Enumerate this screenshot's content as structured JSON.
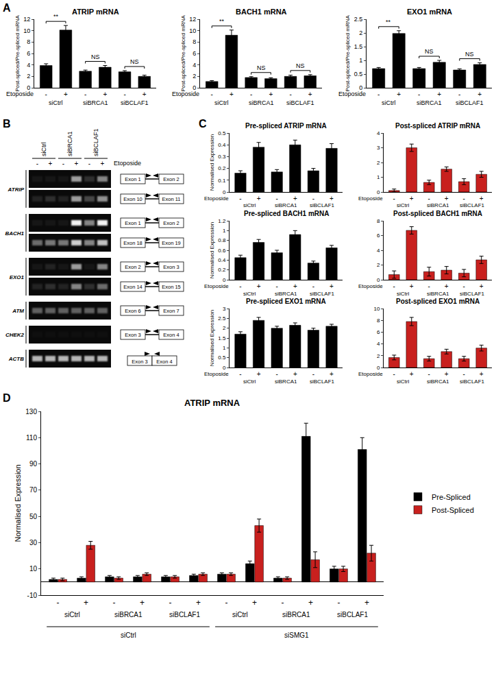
{
  "panel_labels": [
    "A",
    "B",
    "C",
    "D"
  ],
  "chart_data": [
    {
      "type": "bar",
      "title": "ATRIP mRNA",
      "y_label": "Post-spliced/Pre-spliced mRNA",
      "x_label": "Etoposide",
      "categories": [
        "-",
        "+",
        "-",
        "+",
        "-",
        "+"
      ],
      "groups": [
        "siCtrl",
        "siBRCA1",
        "siBCLAF1"
      ],
      "values": [
        3.9,
        10.1,
        2.9,
        3.6,
        2.8,
        2.0
      ],
      "errors": [
        0.3,
        0.8,
        0.2,
        0.3,
        0.2,
        0.2
      ],
      "color": "#000000",
      "ylim": [
        0,
        12
      ],
      "yticks": [
        0,
        2,
        4,
        6,
        8,
        10,
        12
      ],
      "significance": [
        "**",
        "NS",
        "NS"
      ]
    },
    {
      "type": "bar",
      "title": "BACH1 mRNA",
      "y_label": "Post-spliced/Pre-spliced mRNA",
      "x_label": "Etoposide",
      "categories": [
        "-",
        "+",
        "-",
        "+",
        "-",
        "+"
      ],
      "groups": [
        "siCtrl",
        "siBRCA1",
        "siBCLAF1"
      ],
      "values": [
        1.1,
        9.2,
        1.8,
        1.6,
        2.0,
        2.1
      ],
      "errors": [
        0.15,
        0.9,
        0.15,
        0.15,
        0.2,
        0.2
      ],
      "color": "#000000",
      "ylim": [
        0,
        12
      ],
      "yticks": [
        0,
        2,
        4,
        6,
        8,
        10,
        12
      ],
      "significance": [
        "**",
        "NS",
        "NS"
      ]
    },
    {
      "type": "bar",
      "title": "EXO1 mRNA",
      "y_label": "Post-spliced/Pre-spliced mRNA",
      "x_label": "Etoposide",
      "categories": [
        "-",
        "+",
        "-",
        "+",
        "-",
        "+"
      ],
      "groups": [
        "siCtrl",
        "siBRCA1",
        "siBCLAF1"
      ],
      "values": [
        0.7,
        1.98,
        0.7,
        0.93,
        0.65,
        0.85
      ],
      "errors": [
        0.04,
        0.1,
        0.04,
        0.07,
        0.04,
        0.06
      ],
      "color": "#000000",
      "ylim": [
        0,
        2.5
      ],
      "yticks": [
        0,
        0.5,
        1,
        1.5,
        2,
        2.5
      ],
      "significance": [
        "**",
        "NS",
        "NS"
      ]
    },
    {
      "type": "bar",
      "title": "Pre-spliced ATRIP mRNA",
      "y_label": "Normalised Expression",
      "x_label": "Etoposide",
      "categories": [
        "-",
        "+",
        "-",
        "+",
        "-",
        "+"
      ],
      "groups": [
        "siCtrl",
        "siBRCA1",
        "siBCLAF1"
      ],
      "values": [
        0.16,
        0.38,
        0.17,
        0.4,
        0.18,
        0.37
      ],
      "errors": [
        0.02,
        0.04,
        0.02,
        0.04,
        0.02,
        0.04
      ],
      "color": "#000000",
      "ylim": [
        0,
        0.5
      ],
      "yticks": [
        0,
        0.1,
        0.2,
        0.3,
        0.4,
        0.5
      ]
    },
    {
      "type": "bar",
      "title": "Post-spliced ATRIP mRNA",
      "x_label": "Etoposide",
      "categories": [
        "-",
        "+",
        "-",
        "+",
        "-",
        "+"
      ],
      "groups": [
        "siCtrl",
        "siBRCA1",
        "siBCLAF1"
      ],
      "values": [
        0.1,
        3.0,
        0.65,
        1.55,
        0.7,
        1.2
      ],
      "errors": [
        0.1,
        0.25,
        0.15,
        0.15,
        0.2,
        0.2
      ],
      "color": "#c8201e",
      "ylim": [
        0,
        4
      ],
      "yticks": [
        0,
        1,
        2,
        3,
        4
      ]
    },
    {
      "type": "bar",
      "title": "Pre-spliced BACH1 mRNA",
      "y_label": "Normalised Expression",
      "x_label": "Etoposide",
      "categories": [
        "-",
        "+",
        "-",
        "+",
        "-",
        "+"
      ],
      "groups": [
        "siCtrl",
        "siBRCA1",
        "siBCLAF1"
      ],
      "values": [
        0.45,
        0.76,
        0.55,
        0.92,
        0.34,
        0.65
      ],
      "errors": [
        0.05,
        0.06,
        0.05,
        0.08,
        0.04,
        0.05
      ],
      "color": "#000000",
      "ylim": [
        0,
        1.2
      ],
      "yticks": [
        0,
        0.2,
        0.4,
        0.6,
        0.8,
        1,
        1.2
      ]
    },
    {
      "type": "bar",
      "title": "Post-spliced BACH1 mRNA",
      "x_label": "Etoposide",
      "categories": [
        "-",
        "+",
        "-",
        "+",
        "-",
        "+"
      ],
      "groups": [
        "siCtrl",
        "siBRCA1",
        "siBCLAF1"
      ],
      "values": [
        0.7,
        6.7,
        1.1,
        1.3,
        0.9,
        2.7
      ],
      "errors": [
        0.5,
        0.5,
        0.6,
        0.5,
        0.5,
        0.5
      ],
      "color": "#c8201e",
      "ylim": [
        0,
        8
      ],
      "yticks": [
        0,
        2,
        4,
        6,
        8
      ]
    },
    {
      "type": "bar",
      "title": "Pre-spliced EXO1 mRNA",
      "y_label": "Normalised Expression",
      "x_label": "Etoposide",
      "categories": [
        "-",
        "+",
        "-",
        "+",
        "-",
        "+"
      ],
      "groups": [
        "siCtrl",
        "siBRCA1",
        "siBCLAF1"
      ],
      "values": [
        1.7,
        2.4,
        2.0,
        2.15,
        1.9,
        2.1
      ],
      "errors": [
        0.12,
        0.15,
        0.1,
        0.12,
        0.1,
        0.1
      ],
      "color": "#000000",
      "ylim": [
        0,
        3
      ],
      "yticks": [
        0,
        0.5,
        1,
        1.5,
        2,
        2.5,
        3
      ]
    },
    {
      "type": "bar",
      "title": "Post-spliced EXO1 mRNA",
      "x_label": "Etoposide",
      "categories": [
        "-",
        "+",
        "-",
        "+",
        "-",
        "+"
      ],
      "groups": [
        "siCtrl",
        "siBRCA1",
        "siBCLAF1"
      ],
      "values": [
        1.7,
        7.8,
        1.5,
        2.7,
        1.5,
        3.3
      ],
      "errors": [
        0.4,
        0.7,
        0.4,
        0.4,
        0.4,
        0.5
      ],
      "color": "#c8201e",
      "ylim": [
        0,
        10
      ],
      "yticks": [
        0,
        2,
        4,
        6,
        8,
        10
      ]
    },
    {
      "type": "bar",
      "title": "ATRIP mRNA",
      "y_label": "Normalised Expression",
      "x_label": "Etoposide",
      "categories": [
        "-",
        "+",
        "-",
        "+",
        "-",
        "+",
        "-",
        "+",
        "-",
        "+",
        "-",
        "+"
      ],
      "groups": [
        "siCtrl",
        "siBRCA1",
        "siBCLAF1",
        "siCtrl",
        "siBRCA1",
        "siBCLAF1"
      ],
      "outer_groups": [
        "siCtrl",
        "siSMG1"
      ],
      "series": [
        {
          "name": "Pre-Spliced",
          "color": "#000000",
          "values": [
            2,
            3,
            4,
            4,
            4,
            5,
            6,
            14,
            3,
            111,
            10,
            101
          ],
          "errors": [
            1,
            1,
            1,
            1,
            1,
            1,
            1,
            2,
            1,
            10,
            2,
            9
          ]
        },
        {
          "name": "Post-Spliced",
          "color": "#c8201e",
          "values": [
            2,
            28,
            3,
            6,
            4,
            6,
            6,
            43,
            3,
            17,
            10,
            22
          ],
          "errors": [
            1,
            3,
            1,
            1,
            1,
            1,
            1,
            5,
            1,
            6,
            2,
            6
          ]
        }
      ],
      "ylim": [
        -10,
        130
      ],
      "yticks": [
        -10,
        10,
        30,
        50,
        70,
        90,
        110,
        130
      ],
      "legend": "right"
    }
  ],
  "gel": {
    "lane_groups": [
      "siCtrl",
      "siBRCA1",
      "siBCLAF1"
    ],
    "lanes": [
      "-",
      "+",
      "-",
      "+",
      "-",
      "+"
    ],
    "treatment": "Etoposide",
    "genes": [
      {
        "name": "ATRIP",
        "rows": [
          {
            "exons": [
              "Exon 1",
              "Exon 2"
            ],
            "intensity": [
              0.05,
              0.05,
              0.05,
              0.6,
              0.15,
              0.5
            ]
          },
          {
            "exons": [
              "Exon 10",
              "Exon 11"
            ],
            "intensity": [
              0.1,
              0.15,
              0.1,
              0.6,
              0.25,
              0.55
            ]
          }
        ]
      },
      {
        "name": "BACH1",
        "rows": [
          {
            "exons": [
              "Exon 1",
              "Exon 2"
            ],
            "intensity": [
              0.05,
              0.05,
              0.05,
              0.95,
              0.5,
              0.95
            ]
          },
          {
            "exons": [
              "Exon 18",
              "Exon 19"
            ],
            "intensity": [
              0.4,
              0.45,
              0.45,
              0.8,
              0.5,
              0.75
            ]
          }
        ]
      },
      {
        "name": "EXO1",
        "rows": [
          {
            "exons": [
              "Exon 2",
              "Exon 3"
            ],
            "intensity": [
              0.05,
              0.1,
              0.05,
              0.6,
              0.05,
              0.5
            ]
          },
          {
            "exons": [
              "Exon 14",
              "Exon 15"
            ],
            "intensity": [
              0.1,
              0.15,
              0.1,
              0.5,
              0.15,
              0.4
            ]
          }
        ]
      },
      {
        "name": "ATM",
        "rows": [
          {
            "exons": [
              "Exon 6",
              "Exon 7"
            ],
            "intensity": [
              0.35,
              0.35,
              0.35,
              0.35,
              0.35,
              0.35
            ]
          }
        ]
      },
      {
        "name": "CHEK2",
        "rows": [
          {
            "exons": [
              "Exon 3",
              "Exon 4"
            ],
            "intensity": [
              0.02,
              0.02,
              0.02,
              0.02,
              0.02,
              0.02
            ]
          }
        ]
      },
      {
        "name": "ACTB",
        "rows": [
          {
            "exons": [
              "Exon 3",
              "Exon 4"
            ],
            "junction": true,
            "intensity": [
              0.7,
              0.7,
              0.7,
              0.7,
              0.7,
              0.7
            ]
          }
        ]
      }
    ]
  }
}
